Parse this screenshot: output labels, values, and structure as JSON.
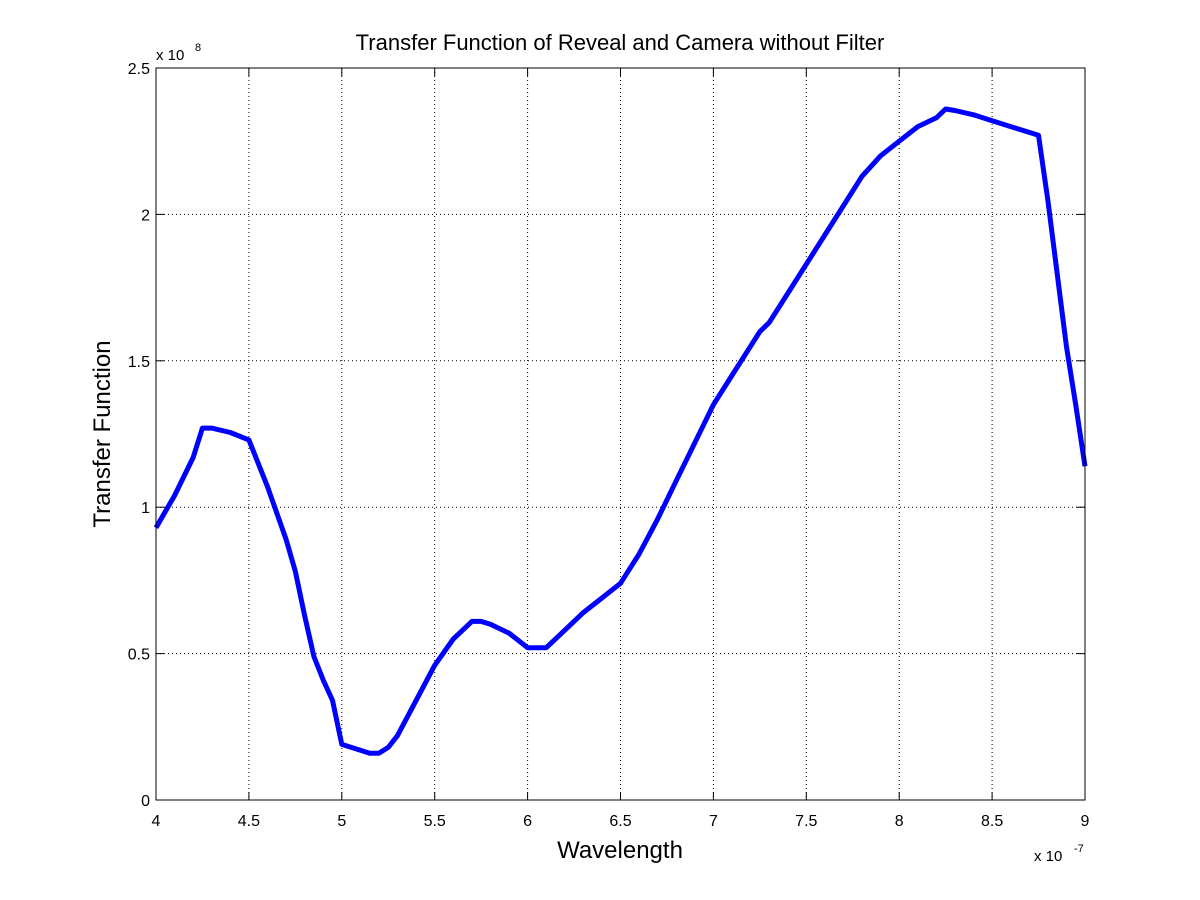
{
  "chart_data": {
    "type": "line",
    "title": "Transfer Function of Reveal and Camera without Filter",
    "xlabel": "Wavelength",
    "ylabel": "Transfer Function",
    "x_multiplier": {
      "base": "x 10",
      "exponent": "-7"
    },
    "y_multiplier": {
      "base": "x 10",
      "exponent": "8"
    },
    "xlim": [
      4,
      9
    ],
    "ylim": [
      0,
      2.5
    ],
    "xticks": [
      4,
      4.5,
      5,
      5.5,
      6,
      6.5,
      7,
      7.5,
      8,
      8.5,
      9
    ],
    "xtick_labels": [
      "4",
      "4.5",
      "5",
      "5.5",
      "6",
      "6.5",
      "7",
      "7.5",
      "8",
      "8.5",
      "9"
    ],
    "yticks": [
      0,
      0.5,
      1,
      1.5,
      2,
      2.5
    ],
    "ytick_labels": [
      "0",
      "0.5",
      "1",
      "1.5",
      "2",
      "2.5"
    ],
    "grid": true,
    "grid_style": "dotted",
    "series": [
      {
        "color": "#0000ff",
        "x": [
          4.0,
          4.1,
          4.2,
          4.25,
          4.3,
          4.4,
          4.5,
          4.6,
          4.7,
          4.75,
          4.8,
          4.85,
          4.9,
          4.95,
          5.0,
          5.1,
          5.15,
          5.2,
          5.25,
          5.3,
          5.4,
          5.5,
          5.6,
          5.7,
          5.75,
          5.8,
          5.9,
          6.0,
          6.1,
          6.2,
          6.3,
          6.4,
          6.5,
          6.6,
          6.7,
          6.8,
          6.9,
          7.0,
          7.1,
          7.2,
          7.25,
          7.3,
          7.4,
          7.5,
          7.6,
          7.7,
          7.8,
          7.9,
          8.0,
          8.1,
          8.2,
          8.25,
          8.3,
          8.4,
          8.5,
          8.6,
          8.7,
          8.75,
          8.8,
          8.85,
          8.9,
          8.95,
          9.0
        ],
        "y": [
          0.93,
          1.04,
          1.17,
          1.27,
          1.27,
          1.255,
          1.23,
          1.07,
          0.89,
          0.78,
          0.63,
          0.49,
          0.41,
          0.34,
          0.19,
          0.17,
          0.16,
          0.16,
          0.18,
          0.22,
          0.34,
          0.46,
          0.55,
          0.61,
          0.61,
          0.6,
          0.57,
          0.52,
          0.52,
          0.58,
          0.64,
          0.69,
          0.74,
          0.84,
          0.96,
          1.09,
          1.22,
          1.35,
          1.45,
          1.55,
          1.6,
          1.63,
          1.73,
          1.83,
          1.93,
          2.03,
          2.13,
          2.2,
          2.25,
          2.3,
          2.33,
          2.36,
          2.355,
          2.34,
          2.32,
          2.3,
          2.28,
          2.27,
          2.05,
          1.8,
          1.55,
          1.35,
          1.14
        ]
      }
    ]
  }
}
